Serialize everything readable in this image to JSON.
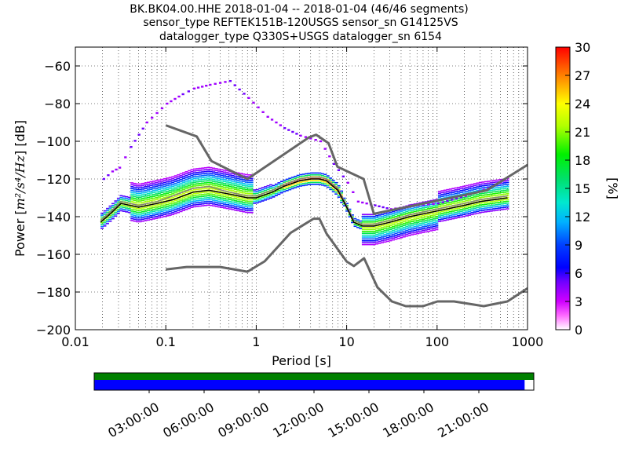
{
  "chart_data": {
    "type": "heatmap",
    "title_lines": [
      "BK.BK04.00.HHE   2018-01-04 -- 2018-01-04  (46/46 segments)",
      "sensor_type REFTEK151B-120USGS sensor_sn G14125VS",
      "datalogger_type Q330S+USGS datalogger_sn 6154"
    ],
    "xlabel": "Period [s]",
    "ylabel_prefix": "Power [",
    "ylabel_units": "m²/s⁴/Hz",
    "ylabel_suffix": "] [dB]",
    "x_scale": "log",
    "xlim": [
      0.01,
      1000
    ],
    "ylim": [
      -200,
      -50
    ],
    "x_ticks": [
      0.01,
      0.1,
      1,
      10,
      100,
      1000
    ],
    "x_tick_labels": [
      "0.01",
      "0.1",
      "1",
      "10",
      "100",
      "1000"
    ],
    "y_ticks": [
      -200,
      -180,
      -160,
      -140,
      -120,
      -100,
      -80,
      -60
    ],
    "y_tick_labels": [
      "−200",
      "−180",
      "−160",
      "−140",
      "−120",
      "−100",
      "−80",
      "−60"
    ],
    "colorbar": {
      "label": "[%]",
      "range": [
        0,
        30
      ],
      "ticks": [
        0,
        3,
        6,
        9,
        12,
        15,
        18,
        21,
        24,
        27,
        30
      ],
      "tick_labels": [
        "0",
        "3",
        "6",
        "9",
        "12",
        "15",
        "18",
        "21",
        "24",
        "27",
        "30"
      ]
    },
    "noise_model_high": {
      "x": [
        0.1,
        0.22,
        0.32,
        0.8,
        3.8,
        4.6,
        6.3,
        7.9,
        15.4,
        20,
        354.8,
        1000
      ],
      "y": [
        -91.5,
        -97.4,
        -110.5,
        -120,
        -98,
        -96.5,
        -101,
        -113.5,
        -120,
        -138.5,
        -126,
        -112.5
      ]
    },
    "noise_model_low": {
      "x": [
        0.1,
        0.17,
        0.4,
        0.8,
        1.24,
        2.4,
        4.3,
        5,
        6,
        10,
        12,
        15.6,
        21.9,
        31.6,
        45,
        70,
        101,
        154,
        328,
        600,
        1000
      ],
      "y": [
        -168,
        -166.7,
        -166.7,
        -169.2,
        -163.7,
        -148.6,
        -141.1,
        -141.1,
        -149,
        -163.8,
        -166.2,
        -162.1,
        -177.5,
        -185,
        -187.5,
        -187.5,
        -185,
        -185,
        -187.5,
        -185,
        -178
      ]
    },
    "mode_curve": {
      "x": [
        0.019,
        0.025,
        0.032,
        0.05,
        0.08,
        0.12,
        0.2,
        0.3,
        0.5,
        0.8,
        1.0,
        1.5,
        2.0,
        3.0,
        4.0,
        5.0,
        6.0,
        8.0,
        10,
        12,
        15,
        20,
        30,
        50,
        100,
        200,
        300,
        600
      ],
      "y": [
        -143,
        -138,
        -133,
        -135,
        -133,
        -131,
        -127,
        -126,
        -128,
        -130,
        -130,
        -127,
        -124,
        -121,
        -120,
        -120,
        -121,
        -126,
        -135,
        -143,
        -145,
        -145,
        -143,
        -140,
        -137,
        -134,
        -132,
        -130
      ]
    },
    "mean_curve": {
      "x": [
        0.019,
        0.025,
        0.032,
        0.05,
        0.08,
        0.12,
        0.2,
        0.3,
        0.5,
        0.8,
        1.0,
        1.5,
        2.0,
        3.0,
        4.0,
        5.0,
        6.0,
        8.0,
        10,
        12,
        15,
        20,
        30,
        50,
        100,
        200,
        300,
        600
      ],
      "y": [
        -142,
        -137,
        -132,
        -134,
        -132,
        -129,
        -125,
        -124,
        -127,
        -129,
        -129,
        -126,
        -123,
        -120,
        -119,
        -119,
        -120,
        -125,
        -134,
        -142,
        -144,
        -144,
        -142,
        -139,
        -136,
        -133,
        -131,
        -129
      ]
    },
    "spread_top": {
      "x": [
        0.02,
        0.025,
        0.03,
        0.04,
        0.06,
        0.1,
        0.15,
        0.2,
        0.3,
        0.5,
        0.8,
        1.3,
        2.0,
        3.0,
        5.0,
        7.0,
        10,
        13,
        20,
        30,
        60,
        100,
        200,
        400,
        600
      ],
      "y": [
        -120,
        -116,
        -114,
        -103,
        -90,
        -80,
        -75,
        -72,
        -70,
        -68,
        -77,
        -87,
        -93,
        -97,
        -100,
        -112,
        -122,
        -132,
        -134,
        -136,
        -134,
        -133,
        -129,
        -124,
        -120
      ]
    },
    "timeline": {
      "tick_labels": [
        "03:00:00",
        "06:00:00",
        "09:00:00",
        "12:00:00",
        "15:00:00",
        "18:00:00",
        "21:00:00"
      ],
      "tick_hours": [
        3,
        6,
        9,
        12,
        15,
        18,
        21
      ],
      "span_hours": [
        0,
        24
      ],
      "data_coverage_end_hours": 23.5,
      "colors": {
        "data": "#0000ff",
        "gaps_bar": "#008000"
      }
    },
    "colors": {
      "noise_model": "#666666",
      "mode": "#000000",
      "mean": "#7f7f7f"
    }
  }
}
